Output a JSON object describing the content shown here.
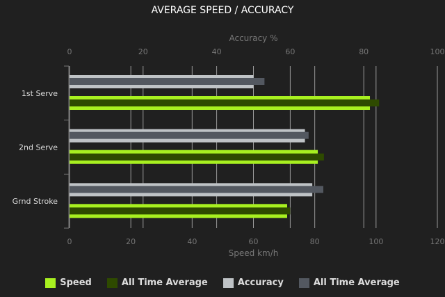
{
  "chart_data": {
    "type": "bar",
    "orientation": "horizontal",
    "title": "AVERAGE SPEED / ACCURACY",
    "categories": [
      "1st Serve",
      "2nd Serve",
      "Grnd Stroke"
    ],
    "top_axis": {
      "label": "Accuracy %",
      "range": [
        0,
        100
      ],
      "ticks": [
        0,
        20,
        40,
        60,
        80,
        100
      ]
    },
    "bottom_axis": {
      "label": "Speed km/h",
      "range": [
        0,
        120
      ],
      "ticks": [
        0,
        20,
        40,
        60,
        80,
        100,
        120
      ]
    },
    "grid": true,
    "legend_position": "bottom",
    "series": [
      {
        "name": "Speed",
        "axis": "bottom",
        "color": "#a8f020",
        "values": [
          98,
          81,
          71
        ]
      },
      {
        "name": "All Time Average",
        "axis": "bottom",
        "color": "#2e4a00",
        "values": [
          101,
          83,
          72
        ]
      },
      {
        "name": "Accuracy",
        "axis": "top",
        "color": "#bfc3c6",
        "values": [
          50,
          64,
          66
        ]
      },
      {
        "name": "All Time Average",
        "axis": "top",
        "color": "#535860",
        "values": [
          53,
          65,
          69
        ]
      }
    ]
  }
}
